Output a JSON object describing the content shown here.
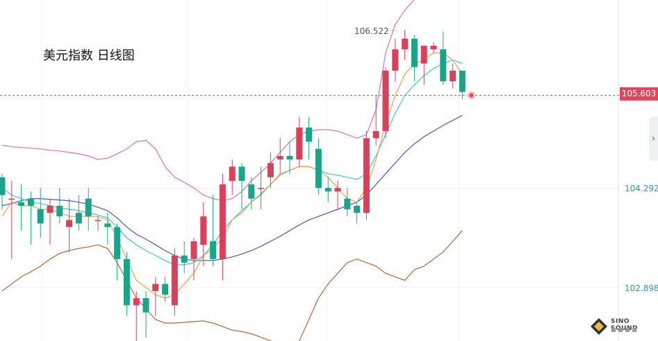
{
  "chart_data": {
    "type": "candlestick",
    "title": "美元指数 日线图",
    "y_ticks": [
      104.292,
      102.898
    ],
    "y_range": [
      102.4,
      107.2
    ],
    "grid": true,
    "current_price": 105.603,
    "annotation_high": 106.522,
    "candles": [
      [
        104.45,
        104.2,
        104.5,
        104.0
      ],
      [
        104.15,
        104.15,
        104.4,
        103.3
      ],
      [
        104.1,
        104.05,
        104.35,
        103.7
      ],
      [
        104.15,
        104.05,
        104.25,
        103.5
      ],
      [
        104.0,
        103.8,
        104.3,
        103.6
      ],
      [
        103.95,
        104.05,
        104.15,
        103.5
      ],
      [
        104.05,
        103.9,
        104.3,
        103.8
      ],
      [
        103.75,
        103.85,
        104.15,
        103.4
      ],
      [
        103.95,
        103.8,
        104.2,
        103.7
      ],
      [
        104.15,
        103.9,
        104.3,
        103.7
      ],
      [
        103.85,
        103.85,
        103.9,
        103.7
      ],
      [
        103.8,
        103.75,
        103.95,
        103.5
      ],
      [
        103.75,
        103.3,
        103.8,
        103.0
      ],
      [
        103.3,
        102.65,
        103.4,
        102.5
      ],
      [
        102.65,
        102.75,
        102.85,
        101.9
      ],
      [
        102.75,
        102.55,
        102.85,
        102.2
      ],
      [
        102.85,
        102.95,
        103.05,
        102.5
      ],
      [
        102.95,
        102.8,
        103.05,
        102.7
      ],
      [
        102.65,
        103.35,
        103.45,
        102.5
      ],
      [
        103.35,
        103.25,
        103.55,
        103.1
      ],
      [
        103.3,
        103.55,
        103.6,
        103.0
      ],
      [
        103.5,
        103.9,
        104.1,
        103.2
      ],
      [
        103.55,
        103.3,
        104.2,
        103.2
      ],
      [
        103.3,
        104.35,
        104.5,
        103.0
      ],
      [
        104.4,
        104.6,
        104.7,
        104.2
      ],
      [
        104.6,
        104.4,
        104.65,
        104.0
      ],
      [
        104.35,
        104.15,
        104.45,
        104.0
      ],
      [
        104.3,
        104.3,
        104.6,
        104.0
      ],
      [
        104.45,
        104.65,
        104.8,
        104.3
      ],
      [
        104.7,
        104.75,
        105.0,
        104.5
      ],
      [
        104.75,
        104.7,
        104.95,
        104.5
      ],
      [
        104.7,
        105.15,
        105.3,
        104.6
      ],
      [
        105.15,
        104.95,
        105.3,
        104.7
      ],
      [
        104.85,
        104.3,
        105.0,
        104.2
      ],
      [
        104.3,
        104.25,
        104.45,
        104.1
      ],
      [
        104.25,
        104.3,
        104.4,
        104.0
      ],
      [
        104.15,
        104.0,
        104.3,
        103.9
      ],
      [
        104.05,
        103.95,
        104.1,
        103.8
      ],
      [
        103.95,
        105.0,
        105.1,
        103.85
      ],
      [
        105.0,
        105.1,
        105.6,
        104.9
      ],
      [
        105.1,
        105.95,
        106.0,
        105.0
      ],
      [
        105.95,
        106.25,
        106.4,
        105.8
      ],
      [
        106.25,
        106.4,
        106.52,
        106.1
      ],
      [
        106.4,
        106.0,
        106.45,
        105.8
      ],
      [
        106.05,
        106.3,
        106.3,
        105.75
      ],
      [
        106.25,
        106.3,
        106.35,
        106.2
      ],
      [
        106.25,
        105.8,
        106.5,
        105.75
      ],
      [
        105.8,
        105.95,
        106.05,
        105.7
      ],
      [
        105.95,
        105.65,
        105.95,
        105.55
      ]
    ],
    "bands": {
      "upper": [
        104.9,
        104.88,
        104.87,
        104.86,
        104.85,
        104.83,
        104.82,
        104.8,
        104.78,
        104.75,
        104.7,
        104.72,
        104.78,
        104.85,
        104.95,
        104.97,
        104.85,
        104.6,
        104.45,
        104.38,
        104.3,
        104.2,
        104.15,
        104.12,
        104.15,
        104.25,
        104.4,
        104.52,
        104.65,
        104.8,
        104.95,
        105.05,
        105.1,
        105.12,
        105.12,
        105.1,
        105.05,
        105.0,
        105.05,
        105.4,
        106.2,
        106.6,
        106.8,
        106.95,
        107.05,
        107.1,
        107.15,
        107.18,
        107.2
      ],
      "lower": [
        102.85,
        102.95,
        103.05,
        103.12,
        103.2,
        103.3,
        103.38,
        103.42,
        103.45,
        103.47,
        103.5,
        103.45,
        103.25,
        103.0,
        102.75,
        102.6,
        102.45,
        102.4,
        102.4,
        102.41,
        102.42,
        102.43,
        102.4,
        102.35,
        102.3,
        102.28,
        102.25,
        102.2,
        102.15,
        102.08,
        102.05,
        102.15,
        102.45,
        102.75,
        102.95,
        103.1,
        103.25,
        103.3,
        103.25,
        103.2,
        103.1,
        103.05,
        103.0,
        103.15,
        103.2,
        103.3,
        103.4,
        103.55,
        103.7
      ]
    },
    "ma_fast": [
      103.9,
      104.1,
      104.05,
      104.05,
      104.0,
      104.0,
      103.95,
      103.9,
      103.9,
      103.9,
      103.9,
      103.85,
      103.6,
      103.3,
      103.0,
      102.9,
      102.8,
      102.75,
      102.8,
      102.95,
      103.1,
      103.35,
      103.45,
      103.6,
      103.85,
      103.95,
      104.1,
      104.2,
      104.35,
      104.5,
      104.55,
      104.6,
      104.6,
      104.55,
      104.45,
      104.3,
      104.15,
      104.1,
      104.3,
      104.7,
      105.2,
      105.6,
      105.9,
      106.05,
      106.1,
      106.2,
      106.2,
      106.1,
      105.9
    ],
    "ma_mid": [
      104.3,
      104.2,
      104.15,
      104.1,
      104.08,
      104.05,
      104.02,
      104.0,
      103.98,
      103.95,
      103.92,
      103.88,
      103.75,
      103.6,
      103.5,
      103.42,
      103.35,
      103.28,
      103.22,
      103.22,
      103.25,
      103.35,
      103.5,
      103.7,
      103.85,
      103.98,
      104.1,
      104.22,
      104.35,
      104.48,
      104.55,
      104.6,
      104.6,
      104.55,
      104.5,
      104.48,
      104.45,
      104.42,
      104.5,
      104.75,
      105.05,
      105.35,
      105.6,
      105.75,
      105.88,
      105.98,
      106.05,
      106.1,
      106.05
    ],
    "ma_slow": [
      104.05,
      104.08,
      104.12,
      104.15,
      104.15,
      104.14,
      104.13,
      104.12,
      104.1,
      104.07,
      104.03,
      103.98,
      103.88,
      103.75,
      103.65,
      103.58,
      103.5,
      103.42,
      103.35,
      103.3,
      103.28,
      103.28,
      103.28,
      103.3,
      103.33,
      103.37,
      103.42,
      103.48,
      103.55,
      103.62,
      103.7,
      103.78,
      103.85,
      103.9,
      103.95,
      104.0,
      104.05,
      104.1,
      104.2,
      104.35,
      104.5,
      104.65,
      104.8,
      104.92,
      105.02,
      105.1,
      105.18,
      105.25,
      105.32
    ]
  }
}
